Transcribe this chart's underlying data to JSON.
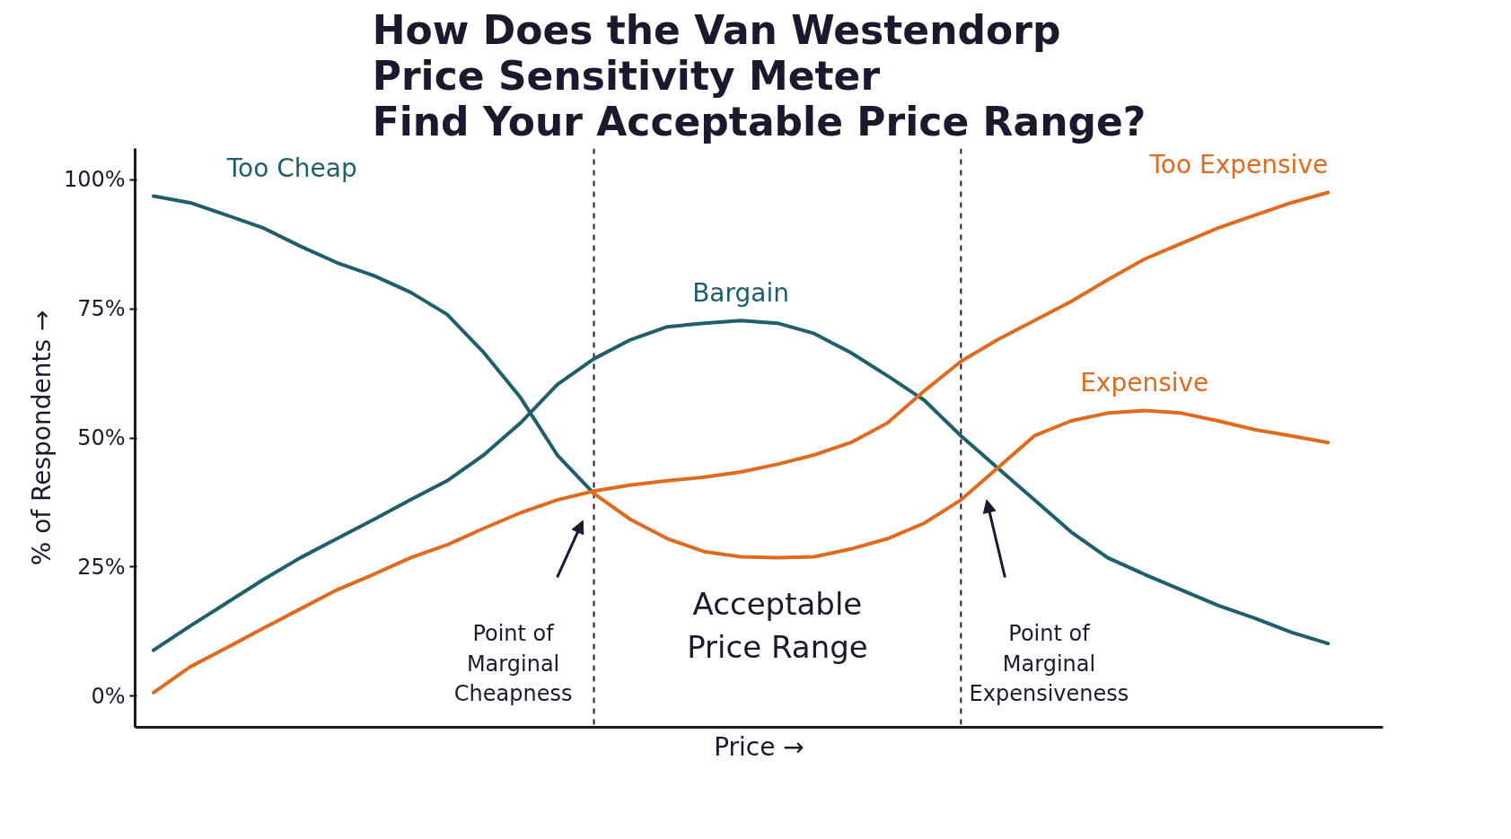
{
  "chart_data": {
    "type": "line",
    "title": "How Does the Van Westendorp\nPrice Sensitivity Meter\nFind Your Acceptable Price Range?",
    "xlabel": "Price →",
    "ylabel": "% of Respondents →",
    "categories": [
      null,
      null,
      null,
      null,
      null,
      null,
      null,
      null,
      null,
      null,
      null,
      null,
      null,
      null,
      null,
      null,
      null,
      null,
      null,
      null,
      null,
      null,
      null,
      null,
      null,
      null,
      null,
      null,
      null,
      null,
      null,
      null,
      null
    ],
    "ylim": [
      -6,
      106
    ],
    "yticks": [
      {
        "value": 0,
        "label": "0%"
      },
      {
        "value": 25,
        "label": "25%"
      },
      {
        "value": 50,
        "label": "50%"
      },
      {
        "value": 75,
        "label": "75%"
      },
      {
        "value": 100,
        "label": "100%"
      }
    ],
    "tick_labels": "y",
    "series": [
      {
        "name": "Too Cheap",
        "color": "#1f5f6b",
        "values": [
          96.8,
          95.5,
          93.1,
          90.6,
          87.1,
          83.9,
          81.4,
          78.2,
          73.9,
          66.5,
          57.8,
          46.7,
          39.2,
          null,
          null,
          null,
          null,
          null,
          null,
          null,
          null,
          null,
          null,
          null,
          null,
          null,
          null,
          null,
          null,
          null,
          null,
          null,
          null
        ]
      },
      {
        "name": "Bargain",
        "color": "#1f5f6b",
        "values": [
          8.9,
          13.6,
          18.1,
          22.6,
          26.8,
          30.5,
          34.2,
          38.0,
          41.7,
          46.7,
          52.9,
          60.3,
          65.3,
          69.0,
          71.5,
          72.2,
          72.7,
          72.2,
          70.2,
          66.5,
          62.0,
          57.3,
          50.4,
          44.2,
          38.0,
          31.8,
          26.8,
          23.6,
          20.6,
          17.6,
          15.1,
          12.4,
          10.2
        ]
      },
      {
        "name": "Too Expensive",
        "color": "#e06a1e",
        "values": [
          0.7,
          5.7,
          9.4,
          13.2,
          16.9,
          20.6,
          23.6,
          26.8,
          29.3,
          32.5,
          35.5,
          38.0,
          39.7,
          40.9,
          41.7,
          42.4,
          43.4,
          44.9,
          46.7,
          49.1,
          52.9,
          59.1,
          64.8,
          69.0,
          72.7,
          76.4,
          80.6,
          84.6,
          87.6,
          90.6,
          93.1,
          95.5,
          97.5
        ]
      },
      {
        "name": "Expensive",
        "color": "#e06a1e",
        "values": [
          null,
          null,
          null,
          null,
          null,
          null,
          null,
          null,
          null,
          null,
          null,
          null,
          39.2,
          34.2,
          30.5,
          28.0,
          27.0,
          26.8,
          27.0,
          28.5,
          30.5,
          33.5,
          38.0,
          44.2,
          50.4,
          53.3,
          54.8,
          55.3,
          54.8,
          53.3,
          51.6,
          50.4,
          49.1
        ]
      }
    ],
    "annotations": [
      "Point of\nMarginal\nCheapness",
      "Point of\nMarginal\nExpensiveness",
      "Acceptable\nPrice Range"
    ],
    "grid": false,
    "marker": "none",
    "line_style": "solid"
  }
}
